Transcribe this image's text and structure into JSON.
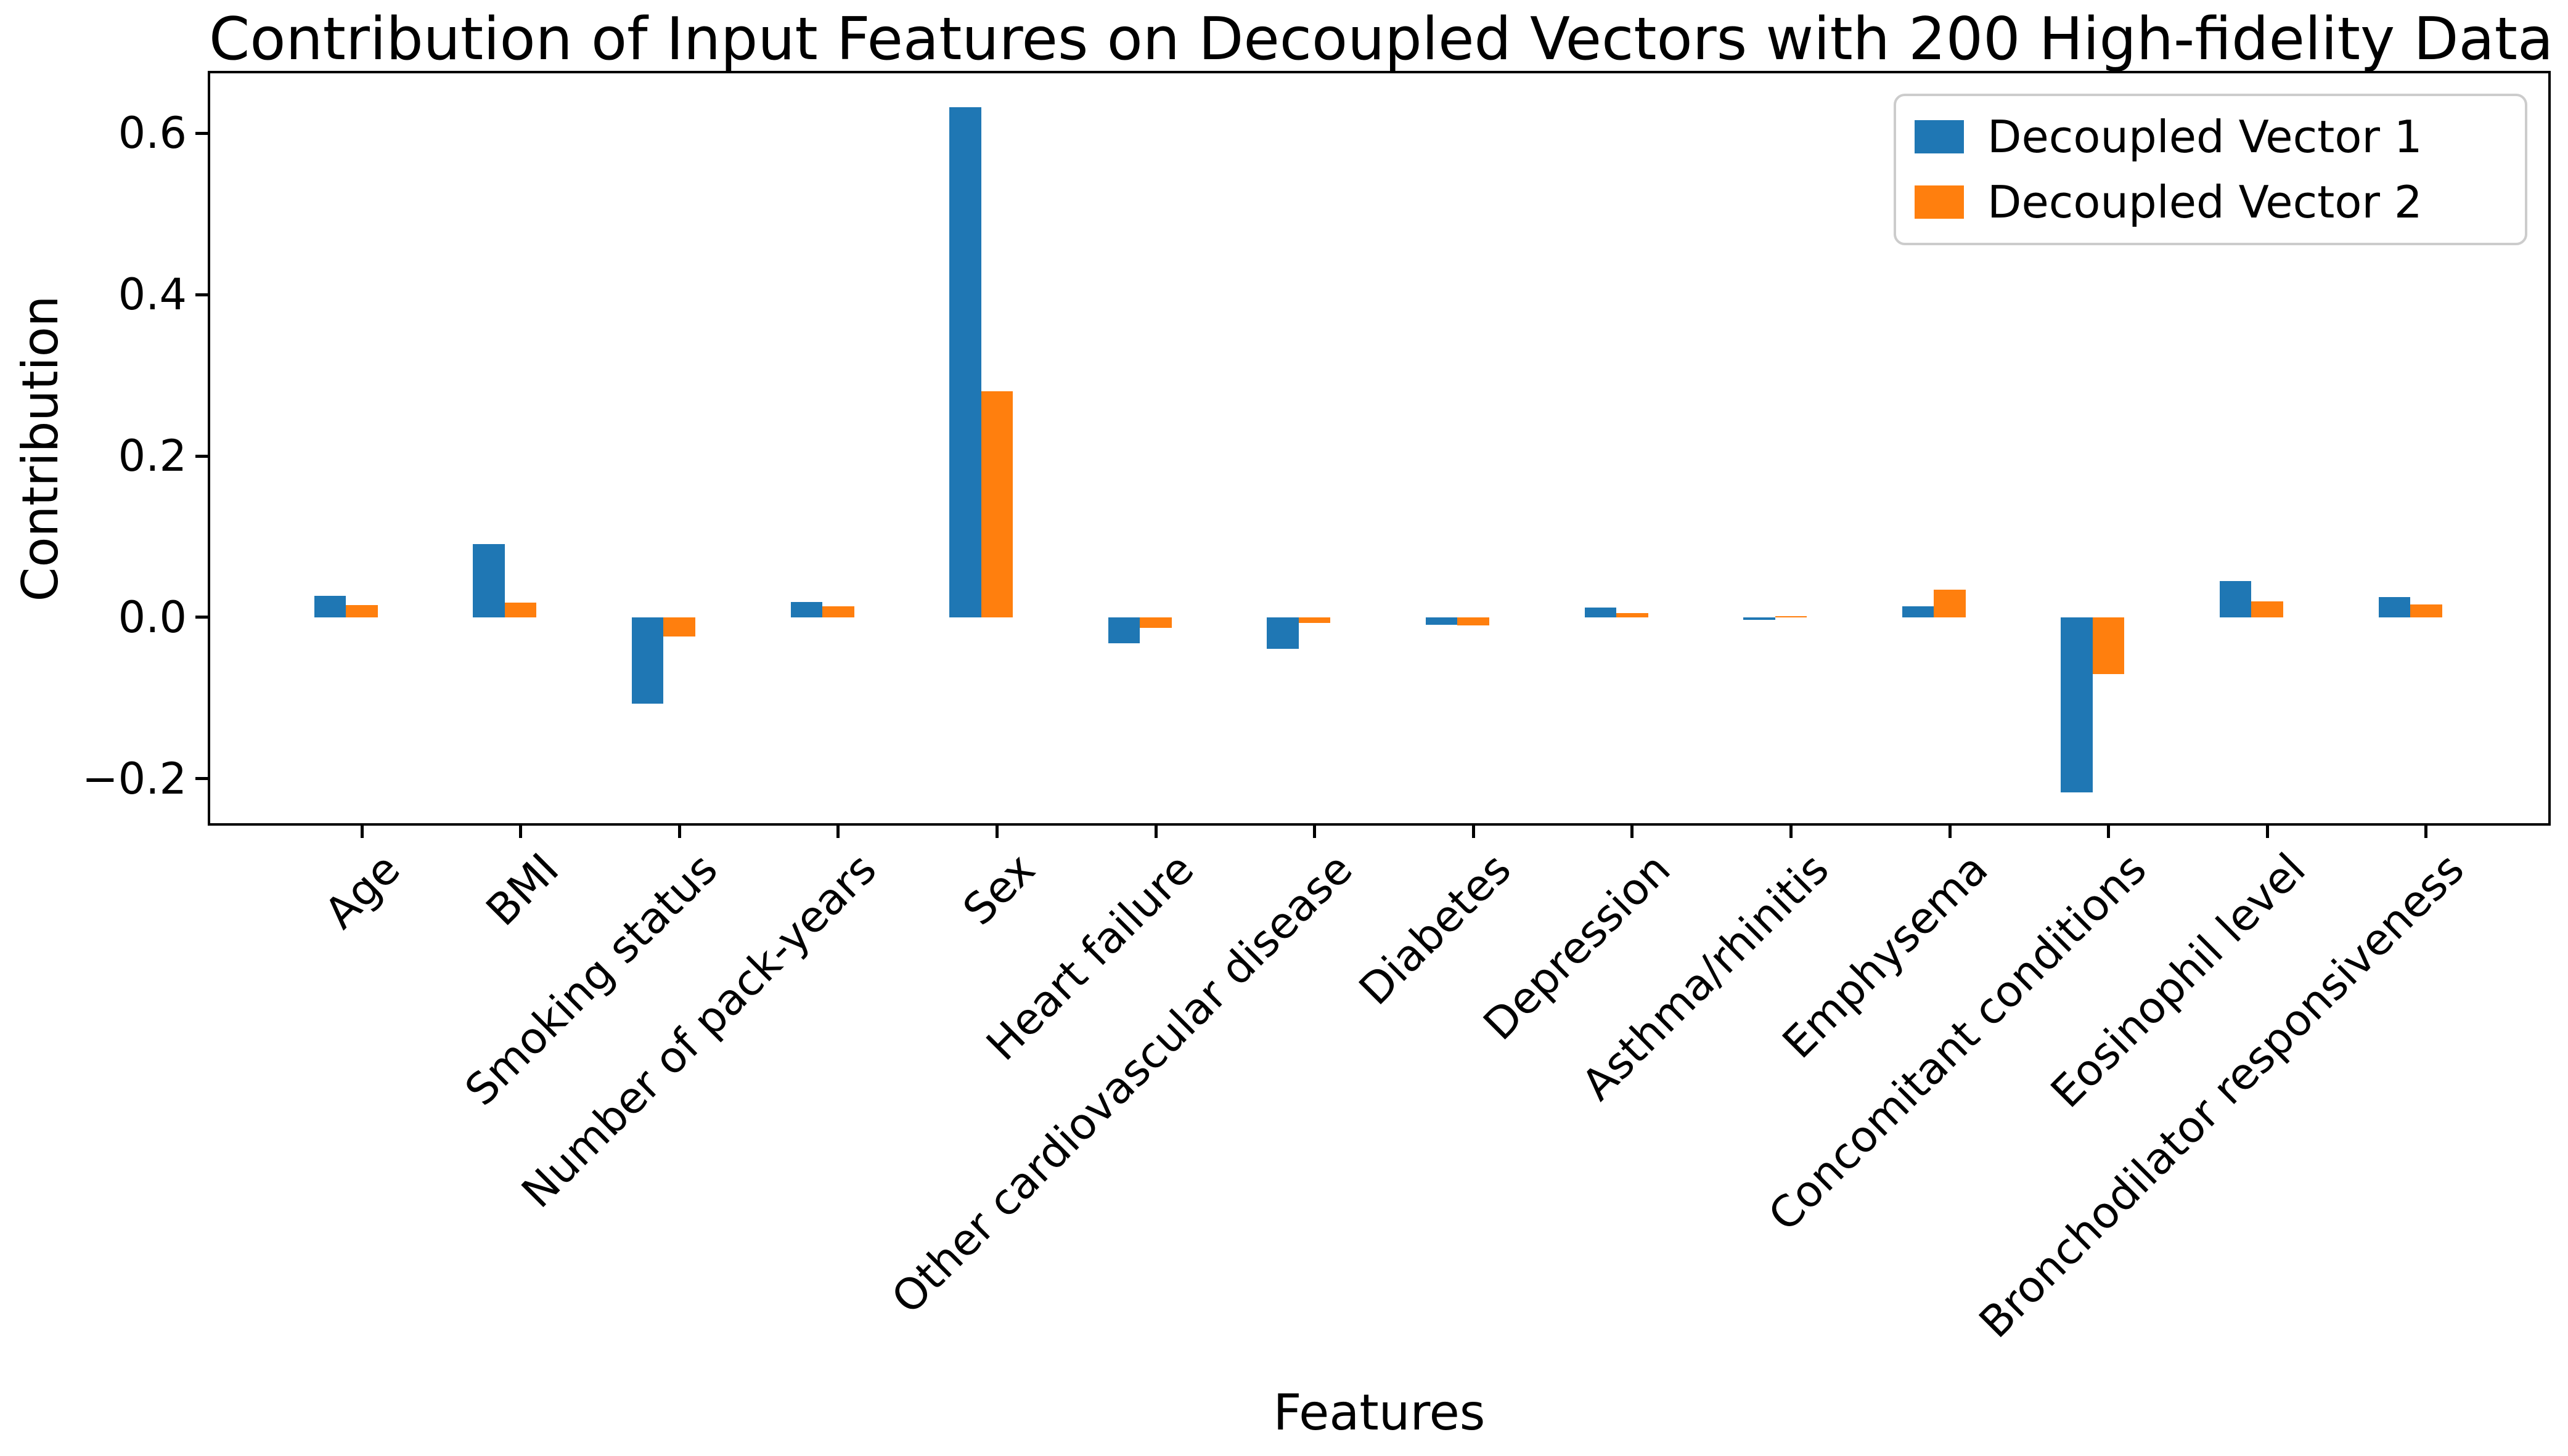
{
  "chart_data": {
    "type": "bar",
    "title": "Contribution of Input Features on Decoupled Vectors with 200 High-fidelity Data",
    "xlabel": "Features",
    "ylabel": "Contribution",
    "categories": [
      "Age",
      "BMI",
      "Smoking status",
      "Number of pack-years",
      "Sex",
      "Heart failure",
      "Other cardiovascular disease",
      "Diabetes",
      "Depression",
      "Asthma/rhinitis",
      "Emphysema",
      "Concomitant conditions",
      "Eosinophil level",
      "Bronchodilator responsiveness"
    ],
    "series": [
      {
        "name": "Decoupled Vector 1",
        "color": "#1f77b4",
        "values": [
          0.027,
          0.091,
          -0.107,
          0.019,
          0.632,
          -0.032,
          -0.039,
          -0.009,
          0.012,
          -0.003,
          0.014,
          -0.217,
          0.045,
          0.025
        ]
      },
      {
        "name": "Decoupled Vector 2",
        "color": "#ff7f0e",
        "values": [
          0.015,
          0.018,
          -0.024,
          0.014,
          0.28,
          -0.013,
          -0.007,
          -0.01,
          0.005,
          0.001,
          0.034,
          -0.07,
          0.02,
          0.016
        ]
      }
    ],
    "ylim": [
      -0.2565,
      0.6756
    ],
    "yticks": [
      -0.2,
      0.0,
      0.2,
      0.4,
      0.6
    ],
    "ytick_labels": [
      "−0.2",
      "0.0",
      "0.2",
      "0.4",
      "0.6"
    ],
    "legend_position": "upper right",
    "grid": false
  }
}
